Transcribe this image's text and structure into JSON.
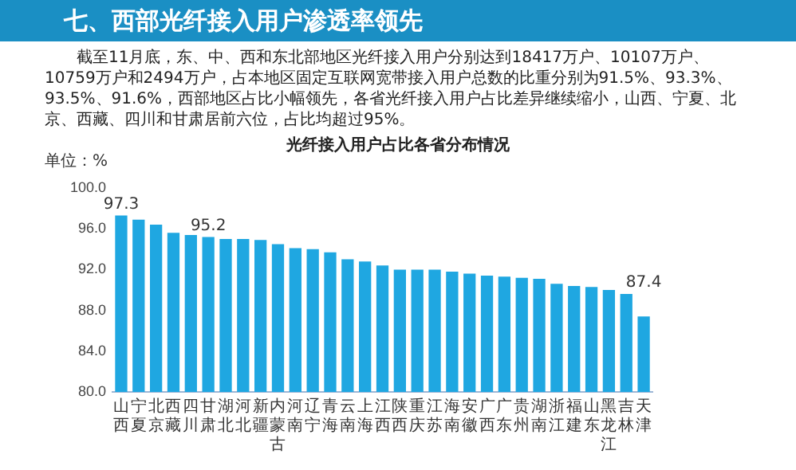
{
  "chart_data": {
    "type": "bar",
    "title": "七、西部光纤接入用户渗透率领先",
    "subtitle": "光纤接入用户占比各省分布情况",
    "ylabel": "单位：%",
    "annotations": [
      "截至11月底，东、中、西和东北部地区光纤接入用户分别达到18417万户、10107万户、10759万户和2494万户，占本地区固定互联网宽带接入用户总数的比重分别为91.5%、93.3%、93.5%、91.6%，西部地区占比小幅领先，各省光纤接入用户占比差异继续缩小，山西、宁夏、北京、西藏、四川和甘肃居前六位，占比均超过95%。"
    ],
    "categories": [
      "山西",
      "宁夏",
      "北京",
      "西藏",
      "四川",
      "甘肃",
      "湖北",
      "河北",
      "新疆",
      "内蒙古",
      "河南",
      "辽宁",
      "青海",
      "云南",
      "上海",
      "江西",
      "陕西",
      "重庆",
      "江苏",
      "海南",
      "安徽",
      "广西",
      "广东",
      "贵州",
      "湖南",
      "浙江",
      "福建",
      "山东",
      "黑龙江",
      "吉林",
      "天津"
    ],
    "values": [
      97.3,
      96.9,
      96.4,
      95.6,
      95.4,
      95.2,
      95.0,
      95.0,
      94.9,
      94.5,
      94.1,
      94.0,
      93.7,
      93.0,
      92.8,
      92.4,
      92.0,
      92.0,
      92.0,
      91.8,
      91.6,
      91.4,
      91.3,
      91.2,
      91.1,
      90.6,
      90.4,
      90.3,
      90.0,
      89.6,
      87.4
    ],
    "value_labels": [
      "97.3",
      null,
      null,
      null,
      null,
      "95.2",
      null,
      null,
      null,
      null,
      null,
      null,
      null,
      null,
      null,
      null,
      null,
      null,
      null,
      null,
      null,
      null,
      null,
      null,
      null,
      null,
      null,
      null,
      null,
      null,
      "87.4"
    ],
    "color": "#1fa7e1",
    "ylim": [
      80,
      100
    ],
    "yticks": [
      {
        "value": 80,
        "label": "80.0"
      },
      {
        "value": 84,
        "label": "84.0"
      },
      {
        "value": 88,
        "label": "88.0"
      },
      {
        "value": 92,
        "label": "92.0"
      },
      {
        "value": 96,
        "label": "96.0"
      },
      {
        "value": 100,
        "label": "100.0"
      }
    ],
    "grid": false,
    "legend": false
  }
}
